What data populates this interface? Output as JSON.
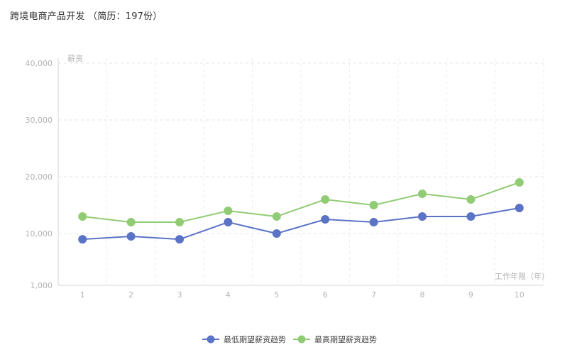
{
  "header": {
    "title": "跨境电商产品开发 （简历：197份）"
  },
  "chart_data": {
    "type": "line",
    "xlabel": "工作年限（年）",
    "ylabel": "薪资",
    "categories": [
      "1",
      "2",
      "3",
      "4",
      "5",
      "6",
      "7",
      "8",
      "9",
      "10"
    ],
    "y_ticks": [
      1000,
      10000,
      20000,
      30000,
      40000
    ],
    "y_tick_labels": [
      "1,000",
      "10,000",
      "20,000",
      "30,000",
      "40,000"
    ],
    "ylim": [
      1000,
      40000
    ],
    "grid": true,
    "legend_position": "bottom-center",
    "series": [
      {
        "name": "最低期望薪资趋势",
        "color": "#5b73c6",
        "values": [
          9000,
          9500,
          9000,
          12000,
          10000,
          12500,
          12000,
          13000,
          13000,
          14500
        ]
      },
      {
        "name": "最高期望薪资趋势",
        "color": "#91cc75",
        "values": [
          13000,
          12000,
          12000,
          14000,
          13000,
          16000,
          15000,
          17000,
          16000,
          19000
        ]
      }
    ]
  }
}
